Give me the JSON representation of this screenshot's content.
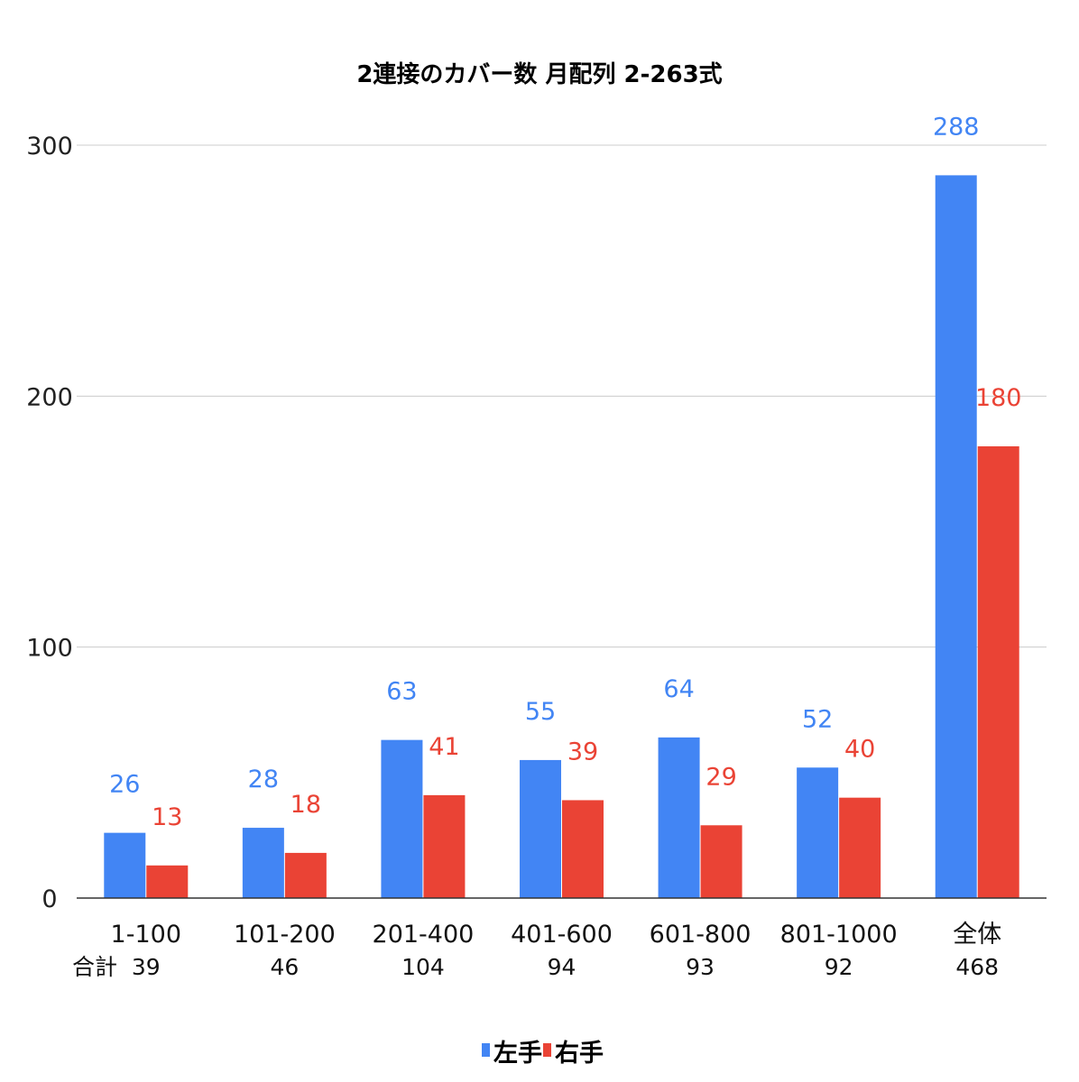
{
  "chart_data": {
    "type": "bar",
    "title": "2連接のカバー数 月配列 2-263式",
    "categories": [
      "1-100",
      "101-200",
      "201-400",
      "401-600",
      "601-800",
      "801-1000",
      "全体"
    ],
    "category_totals": [
      "39",
      "46",
      "104",
      "94",
      "93",
      "92",
      "468"
    ],
    "totals_label": "合計",
    "series": [
      {
        "name": "左手",
        "values": [
          26,
          28,
          63,
          55,
          64,
          52,
          288
        ],
        "color": "#4285F4"
      },
      {
        "name": "右手",
        "values": [
          13,
          18,
          41,
          39,
          29,
          40,
          180
        ],
        "color": "#EA4335"
      }
    ],
    "ylim": [
      0,
      300
    ],
    "yticks": [
      0,
      100,
      200,
      300
    ],
    "grid": true,
    "legend": "bottom",
    "xlabel": "",
    "ylabel": ""
  }
}
